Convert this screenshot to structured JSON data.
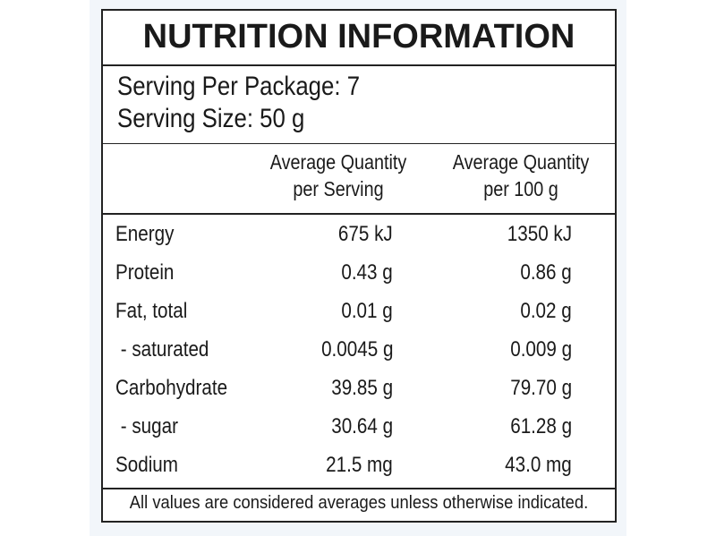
{
  "header": {
    "title": "NUTRITION INFORMATION"
  },
  "serving": {
    "per_package": "Serving Per Package: 7",
    "size": "Serving Size: 50 g"
  },
  "table": {
    "columns": [
      [
        "Average Quantity",
        "per Serving"
      ],
      [
        "Average Quantity",
        "per 100 g"
      ]
    ],
    "rows": [
      [
        "Energy",
        "675 kJ",
        "1350 kJ"
      ],
      [
        "Protein",
        "0.43 g",
        "0.86 g"
      ],
      [
        "Fat, total",
        "0.01 g",
        "0.02 g"
      ],
      [
        " - saturated",
        "0.0045 g",
        "0.009 g"
      ],
      [
        "Carbohydrate",
        "39.85 g",
        "79.70 g"
      ],
      [
        " - sugar",
        "30.64 g",
        "61.28 g"
      ],
      [
        "Sodium",
        "21.5 mg",
        "43.0 mg"
      ]
    ]
  },
  "footer": "All values are considered averages unless otherwise indicated."
}
